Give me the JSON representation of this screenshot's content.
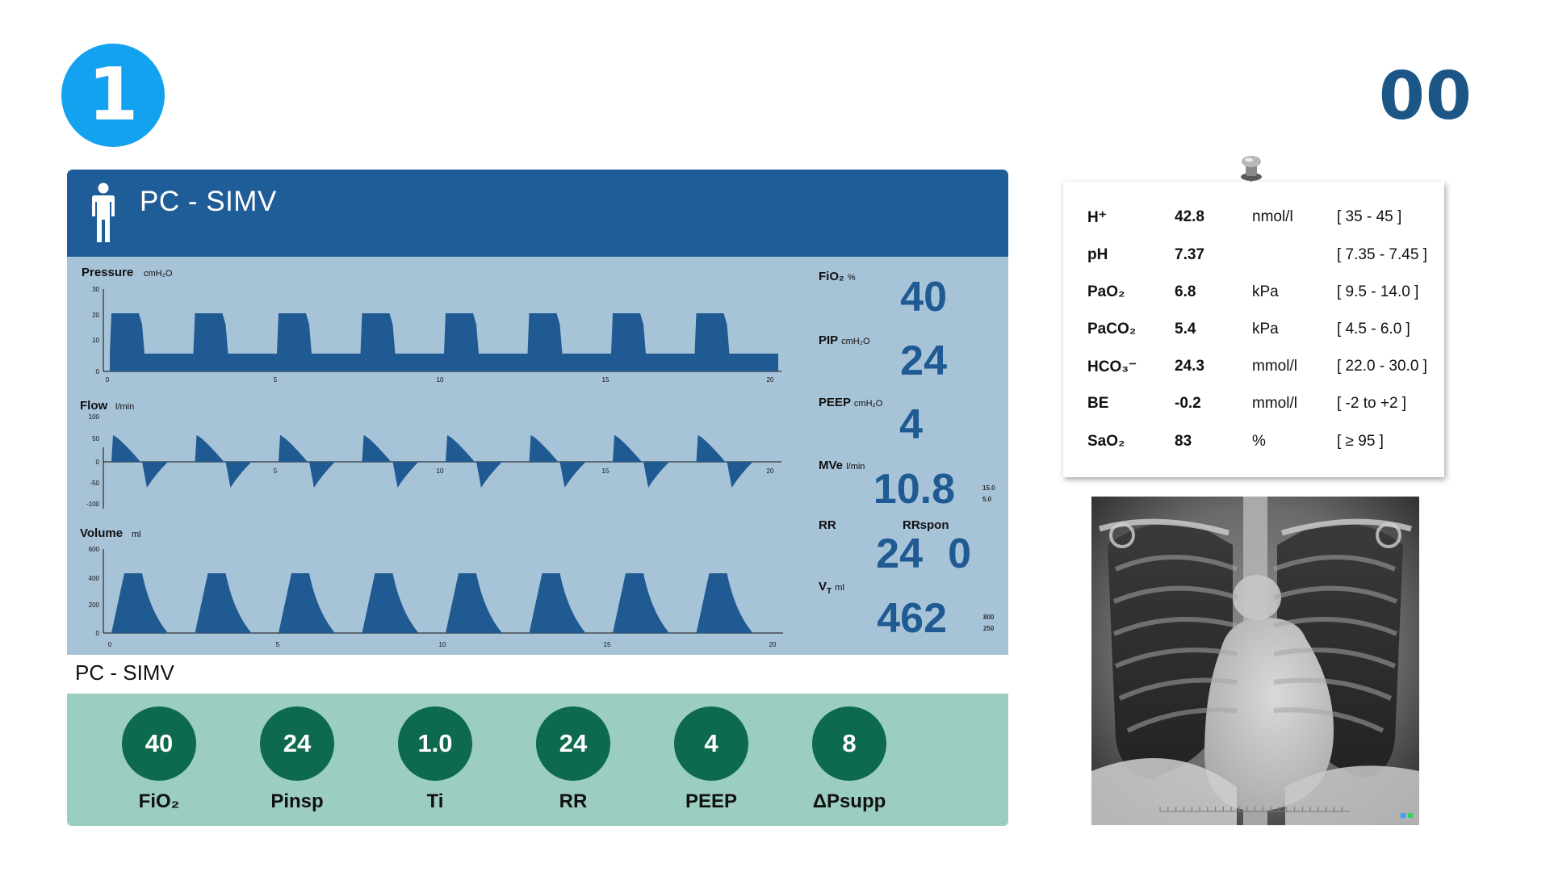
{
  "slide": {
    "step_number": "1",
    "timer": "00"
  },
  "ventilator": {
    "mode": "PC - SIMV",
    "panels": [
      {
        "label": "Pressure",
        "unit": "cmH₂O",
        "yticks": [
          "30",
          "20",
          "10",
          "0"
        ],
        "xticks": [
          "0",
          "5",
          "10",
          "15",
          "20"
        ]
      },
      {
        "label": "Flow",
        "unit": "l/min",
        "yticks": [
          "100",
          "50",
          "0",
          "-50",
          "-100"
        ],
        "xticks": [
          "5",
          "10",
          "15",
          "20"
        ]
      },
      {
        "label": "Volume",
        "unit": "ml",
        "yticks": [
          "600",
          "400",
          "200",
          "0"
        ],
        "xticks": [
          "0",
          "5",
          "10",
          "15",
          "20"
        ]
      }
    ],
    "readouts": {
      "fio2": {
        "label": "FiO₂",
        "unit": "%",
        "value": "40"
      },
      "pip": {
        "label": "PIP",
        "unit": "cmH₂O",
        "value": "24"
      },
      "peep": {
        "label": "PEEP",
        "unit": "cmH₂O",
        "value": "4"
      },
      "mve": {
        "label": "MVe",
        "unit": "l/min",
        "value": "10.8",
        "limit_high": "15.0",
        "limit_low": "5.0"
      },
      "rr": {
        "label": "RR",
        "value": "24"
      },
      "rrspon": {
        "label": "RRspon",
        "value": "0"
      },
      "vt": {
        "label": "VT",
        "unit": "ml",
        "value": "462",
        "limit_high": "800",
        "limit_low": "250"
      }
    }
  },
  "mode_caption": "PC - SIMV",
  "settings": [
    {
      "value": "40",
      "label": "FiO₂"
    },
    {
      "value": "24",
      "label": "Pinsp"
    },
    {
      "value": "1.0",
      "label": "Ti"
    },
    {
      "value": "24",
      "label": "RR"
    },
    {
      "value": "4",
      "label": "PEEP"
    },
    {
      "value": "8",
      "label": "ΔPsupp"
    }
  ],
  "blood_gas": [
    {
      "name": "H⁺",
      "value": "42.8",
      "unit": "nmol/l",
      "range": "[ 35 - 45 ]"
    },
    {
      "name": "pH",
      "value": "7.37",
      "unit": "",
      "range": "[ 7.35 - 7.45 ]"
    },
    {
      "name": "PaO₂",
      "value": "6.8",
      "unit": "kPa",
      "range": "[ 9.5 - 14.0 ]"
    },
    {
      "name": "PaCO₂",
      "value": "5.4",
      "unit": "kPa",
      "range": "[ 4.5 - 6.0 ]"
    },
    {
      "name": "HCO₃⁻",
      "value": "24.3",
      "unit": "mmol/l",
      "range": "[ 22.0 - 30.0 ]"
    },
    {
      "name": "BE",
      "value": "-0.2",
      "unit": "mmol/l",
      "range": "[ -2 to +2 ]"
    },
    {
      "name": "SaO₂",
      "value": "83",
      "unit": "%",
      "range": "[ ≥ 95 ]"
    }
  ],
  "xray": {
    "image": "chest-x-ray"
  },
  "colors": {
    "badge": "#13a2f0",
    "timer": "#1b5686",
    "header": "#1f5d98",
    "wave": "#1f5a92",
    "knob": "#0e6a4e",
    "settings_bg": "#9ccdc1"
  }
}
